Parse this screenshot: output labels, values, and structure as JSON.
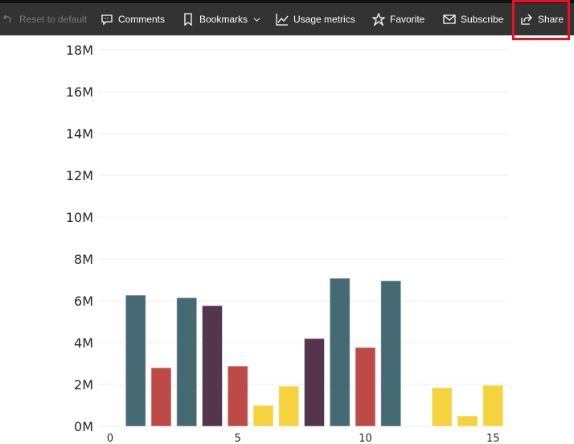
{
  "toolbar": {
    "reset": "Reset to default",
    "comments": "Comments",
    "bookmarks": "Bookmarks",
    "usage": "Usage metrics",
    "favorite": "Favorite",
    "subscribe": "Subscribe",
    "share": "Share"
  },
  "chart_data": {
    "type": "bar",
    "x": [
      1,
      2,
      3,
      4,
      5,
      6,
      7,
      8,
      9,
      10,
      11,
      12,
      13,
      14,
      15
    ],
    "values": [
      6.27,
      2.8,
      6.15,
      5.77,
      2.88,
      1.0,
      1.92,
      4.2,
      7.08,
      3.77,
      6.96,
      0,
      1.85,
      0.5,
      1.96
    ],
    "colors": [
      "#466A74",
      "#BE4A47",
      "#466A74",
      "#54364C",
      "#BE4A47",
      "#F5D33F",
      "#F5D33F",
      "#54364C",
      "#466A74",
      "#BE4A47",
      "#466A74",
      "#466A74",
      "#F5D33F",
      "#F5D33F",
      "#F5D33F"
    ],
    "unit": "M",
    "ylim": [
      0,
      18
    ],
    "yticks": [
      "0M",
      "2M",
      "4M",
      "6M",
      "8M",
      "10M",
      "12M",
      "14M",
      "16M",
      "18M"
    ],
    "xticks": [
      "0",
      "5",
      "10",
      "15"
    ],
    "xlim": [
      0,
      15.5
    ],
    "grid": true
  }
}
